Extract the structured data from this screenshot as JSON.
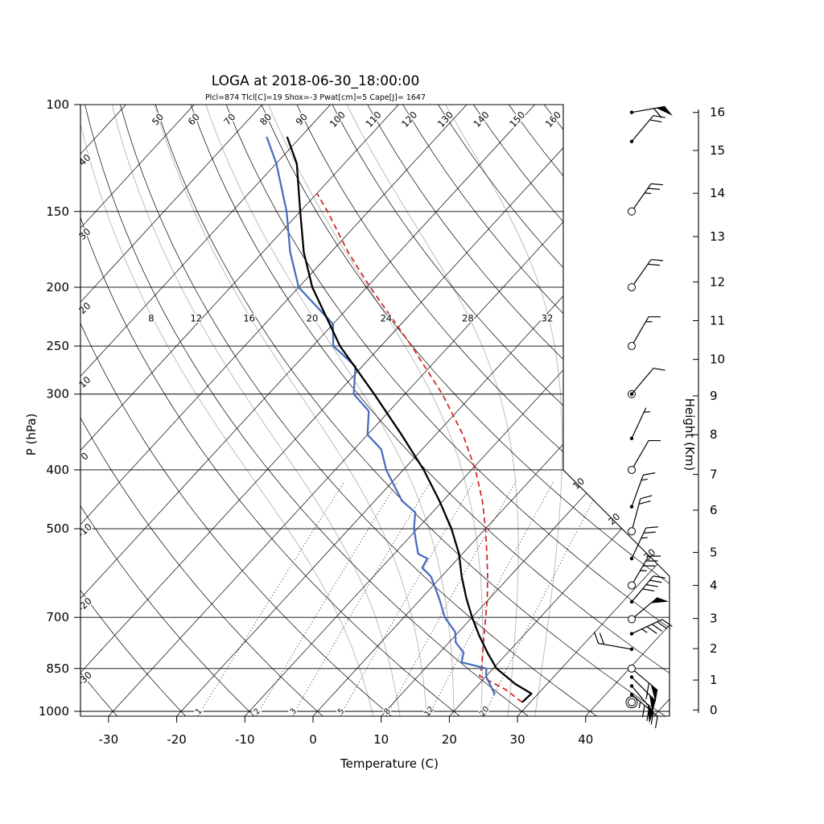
{
  "title": "LOGA at 2018-06-30_18:00:00",
  "stats_line": "Plcl=874 Tlcl[C]=19 Shox=-3 Pwat[cm]=5 Cape[J]= 1647",
  "axis_labels": {
    "pressure": "P (hPa)",
    "temperature": "Temperature (C)",
    "height": "Height (Km)"
  },
  "colors": {
    "temperature_curve": "#000000",
    "dewpoint_curve": "#4a6fbf",
    "parcel_curve": "#d02020",
    "moist_adiabat": "#b5b5b5",
    "grid": "#000000",
    "stats_text": "#bf4a1f"
  },
  "chart_data": {
    "type": "skewt_logp",
    "pressure_axis_ticks": [
      100,
      150,
      200,
      250,
      300,
      400,
      500,
      700,
      850,
      1000
    ],
    "temperature_axis_ticks": [
      -30,
      -20,
      -10,
      0,
      10,
      20,
      30,
      40
    ],
    "isotherms": {
      "min": -120,
      "max": 50,
      "step": 10,
      "left_edge_labels": [
        40,
        30,
        20,
        10,
        0,
        -10,
        -20,
        -30
      ],
      "cut_labels": [
        10,
        20,
        30
      ]
    },
    "dry_adiabats": {
      "min": -30,
      "max": 160,
      "step": 10,
      "top_labels": [
        50,
        60,
        70,
        80,
        90,
        100,
        110,
        120,
        130,
        140,
        150,
        160
      ]
    },
    "moist_adiabats": {
      "values": [
        8,
        12,
        16,
        20,
        24,
        28,
        32
      ],
      "label_pressure": 225
    },
    "mixing_ratios_gkg": [
      1,
      2,
      3,
      5,
      8,
      12,
      20
    ],
    "height_ticks_km_p": [
      [
        0,
        995
      ],
      [
        1,
        888
      ],
      [
        2,
        788
      ],
      [
        3,
        703
      ],
      [
        4,
        620
      ],
      [
        5,
        547
      ],
      [
        6,
        466
      ],
      [
        7,
        407
      ],
      [
        8,
        350
      ],
      [
        9,
        302
      ],
      [
        10,
        263
      ],
      [
        11,
        227
      ],
      [
        12,
        196
      ],
      [
        13,
        165
      ],
      [
        14,
        140
      ],
      [
        15,
        119
      ],
      [
        16,
        103
      ]
    ],
    "temperature_profile": [
      [
        966,
        28.8
      ],
      [
        935,
        29.0
      ],
      [
        901,
        25.3
      ],
      [
        850,
        20.5
      ],
      [
        800,
        17.0
      ],
      [
        750,
        13.5
      ],
      [
        700,
        10.0
      ],
      [
        650,
        6.5
      ],
      [
        600,
        3.0
      ],
      [
        550,
        -0.5
      ],
      [
        500,
        -5.0
      ],
      [
        450,
        -10.5
      ],
      [
        400,
        -17.0
      ],
      [
        350,
        -25.0
      ],
      [
        300,
        -34.5
      ],
      [
        250,
        -46.0
      ],
      [
        200,
        -58.0
      ],
      [
        175,
        -64.0
      ],
      [
        150,
        -70.0
      ],
      [
        125,
        -77.0
      ],
      [
        113,
        -82.0
      ]
    ],
    "dewpoint_profile": [
      [
        940,
        23.8
      ],
      [
        925,
        23.0
      ],
      [
        900,
        21.5
      ],
      [
        875,
        20.0
      ],
      [
        850,
        19.0
      ],
      [
        830,
        14.5
      ],
      [
        800,
        13.5
      ],
      [
        770,
        11.0
      ],
      [
        740,
        9.5
      ],
      [
        700,
        6.0
      ],
      [
        650,
        2.5
      ],
      [
        600,
        -1.5
      ],
      [
        580,
        -4.0
      ],
      [
        560,
        -4.5
      ],
      [
        550,
        -6.5
      ],
      [
        500,
        -10.5
      ],
      [
        470,
        -12.5
      ],
      [
        450,
        -16.0
      ],
      [
        400,
        -22.5
      ],
      [
        370,
        -26.0
      ],
      [
        350,
        -30.0
      ],
      [
        320,
        -33.0
      ],
      [
        300,
        -37.5
      ],
      [
        270,
        -41.0
      ],
      [
        250,
        -47.0
      ],
      [
        230,
        -50.0
      ],
      [
        200,
        -60.0
      ],
      [
        175,
        -66.0
      ],
      [
        150,
        -72.0
      ],
      [
        125,
        -80.0
      ],
      [
        113,
        -85.0
      ]
    ],
    "parcel_profile": [
      [
        966,
        28.8
      ],
      [
        920,
        24.6
      ],
      [
        874,
        19.0
      ],
      [
        850,
        18.3
      ],
      [
        800,
        16.3
      ],
      [
        750,
        14.2
      ],
      [
        700,
        12.0
      ],
      [
        650,
        9.6
      ],
      [
        600,
        6.8
      ],
      [
        550,
        3.6
      ],
      [
        500,
        0.0
      ],
      [
        450,
        -4.2
      ],
      [
        400,
        -9.4
      ],
      [
        350,
        -16.0
      ],
      [
        300,
        -24.5
      ],
      [
        250,
        -35.5
      ],
      [
        200,
        -49.5
      ],
      [
        175,
        -57.5
      ],
      [
        150,
        -66.0
      ],
      [
        140,
        -70.0
      ]
    ],
    "wind_profile": [
      {
        "p": 103,
        "spd": 60,
        "dir": 80,
        "marker": "dot"
      },
      {
        "p": 115,
        "spd": 20,
        "dir": 40,
        "marker": "dot"
      },
      {
        "p": 150,
        "spd": 25,
        "dir": 35,
        "marker": "circle"
      },
      {
        "p": 200,
        "spd": 20,
        "dir": 35,
        "marker": "circle"
      },
      {
        "p": 250,
        "spd": 15,
        "dir": 30,
        "marker": "circle"
      },
      {
        "p": 300,
        "spd": 10,
        "dir": 40,
        "marker": "circledot"
      },
      {
        "p": 355,
        "spd": 5,
        "dir": 25,
        "marker": "dot"
      },
      {
        "p": 400,
        "spd": 10,
        "dir": 30,
        "marker": "circle"
      },
      {
        "p": 460,
        "spd": 15,
        "dir": 20,
        "marker": "dot"
      },
      {
        "p": 505,
        "spd": 20,
        "dir": 15,
        "marker": "circle"
      },
      {
        "p": 560,
        "spd": 25,
        "dir": 25,
        "marker": "dot"
      },
      {
        "p": 620,
        "spd": 35,
        "dir": 30,
        "marker": "circle"
      },
      {
        "p": 660,
        "spd": 40,
        "dir": 40,
        "marker": "dot"
      },
      {
        "p": 705,
        "spd": 50,
        "dir": 50,
        "marker": "circle"
      },
      {
        "p": 745,
        "spd": 45,
        "dir": 65,
        "marker": "dot"
      },
      {
        "p": 790,
        "spd": 20,
        "dir": 280,
        "marker": "dot"
      },
      {
        "p": 850,
        "spd": 60,
        "dir": 130,
        "marker": "circle"
      },
      {
        "p": 878,
        "spd": 55,
        "dir": 135,
        "marker": "dot"
      },
      {
        "p": 908,
        "spd": 50,
        "dir": 140,
        "marker": "dot"
      },
      {
        "p": 938,
        "spd": 45,
        "dir": 130,
        "marker": "dot"
      },
      {
        "p": 966,
        "spd": 0,
        "dir": 0,
        "marker": "circle"
      }
    ]
  }
}
